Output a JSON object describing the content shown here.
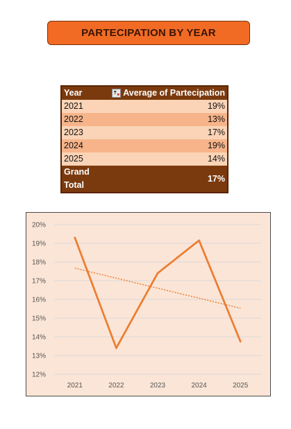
{
  "title": "PARTECIPATION BY YEAR",
  "pivot": {
    "col_year": "Year",
    "col_value": "Average of Partecipation",
    "rows": [
      {
        "year": "2021",
        "value": "19%"
      },
      {
        "year": "2022",
        "value": "13%"
      },
      {
        "year": "2023",
        "value": "17%"
      },
      {
        "year": "2024",
        "value": "19%"
      },
      {
        "year": "2025",
        "value": "14%"
      }
    ],
    "total_label": "Grand Total",
    "total_value": "17%"
  },
  "chart_data": {
    "type": "line",
    "categories": [
      "2021",
      "2022",
      "2023",
      "2024",
      "2025"
    ],
    "series": [
      {
        "values": [
          19.3,
          13.4,
          17.4,
          19.15,
          13.75
        ],
        "color": "#ed7d31"
      }
    ],
    "trendline": {
      "type": "linear",
      "style": "dotted",
      "color": "#ed7d31"
    },
    "ylim": [
      12,
      20
    ],
    "yticks": [
      "12%",
      "13%",
      "14%",
      "15%",
      "16%",
      "17%",
      "18%",
      "19%",
      "20%"
    ],
    "grid": true,
    "legend": "none"
  }
}
